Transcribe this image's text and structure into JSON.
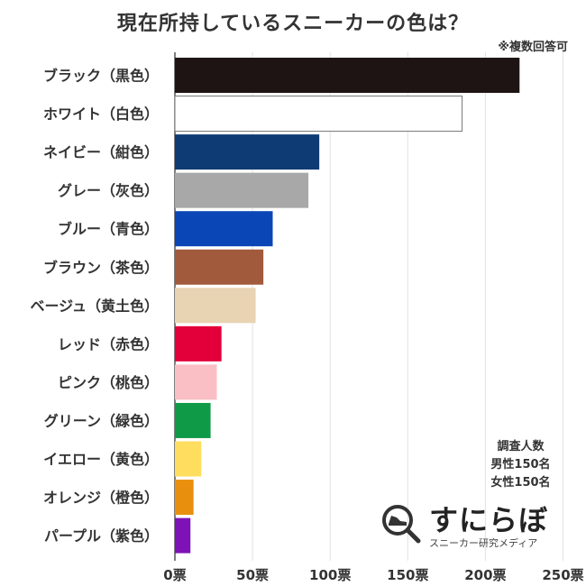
{
  "title": "現在所持しているスニーカーの色は？",
  "note": "※複数回答可",
  "sample": {
    "line1": "調査人数",
    "line2": "男性150名",
    "line3": "女性150名"
  },
  "logo": {
    "main": "すにらぼ",
    "sub": "スニーカー研究メディア"
  },
  "chart_data": {
    "type": "bar",
    "orientation": "horizontal",
    "unit": "票",
    "categories": [
      "ブラック（黒色）",
      "ホワイト（白色）",
      "ネイビー（紺色）",
      "グレー（灰色）",
      "ブルー（青色）",
      "ブラウン（茶色）",
      "ベージュ（黄土色）",
      "レッド（赤色）",
      "ピンク（桃色）",
      "グリーン（緑色）",
      "イエロー（黄色）",
      "オレンジ（橙色）",
      "パープル（紫色）"
    ],
    "values": [
      222,
      185,
      93,
      86,
      63,
      57,
      52,
      30,
      27,
      23,
      17,
      12,
      10
    ],
    "colors": [
      "#1f1414",
      "#ffffff",
      "#0e3b73",
      "#a8a8a8",
      "#0a46b6",
      "#a15a3b",
      "#e8d3b2",
      "#e3003a",
      "#f9bfc4",
      "#0f9a48",
      "#ffdd5f",
      "#e8900e",
      "#7d12b7"
    ],
    "xlim": [
      0,
      250
    ],
    "xticks": [
      0,
      50,
      100,
      150,
      200,
      250
    ],
    "xtick_labels": [
      "0票",
      "50票",
      "100票",
      "150票",
      "200票",
      "250票"
    ],
    "grid": true
  }
}
